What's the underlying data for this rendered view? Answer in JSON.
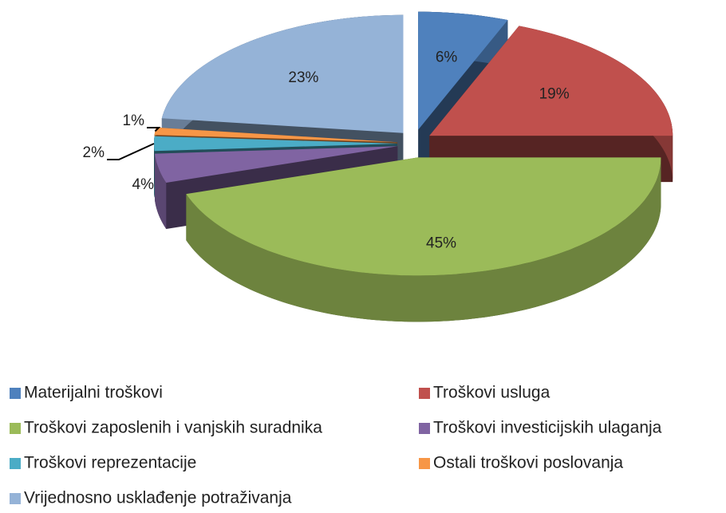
{
  "chart_data": {
    "type": "pie",
    "categories": [
      "Materijalni troškovi",
      "Troškovi usluga",
      "Troškovi zaposlenih i vanjskih suradnika",
      "Troškovi investicijskih ulaganja",
      "Troškovi reprezentacije",
      "Ostali troškovi poslovanja",
      "Vrijednosno usklađenje potraživanja"
    ],
    "values": [
      6,
      19,
      45,
      4,
      2,
      1,
      23
    ],
    "value_labels": [
      "6%",
      "19%",
      "45%",
      "4%",
      "2%",
      "1%",
      "23%"
    ],
    "colors": [
      "#4f81bd",
      "#c0504d",
      "#9bbb59",
      "#8064a2",
      "#4bacc6",
      "#f79646",
      "#95b3d7"
    ],
    "legend": "bottom"
  }
}
